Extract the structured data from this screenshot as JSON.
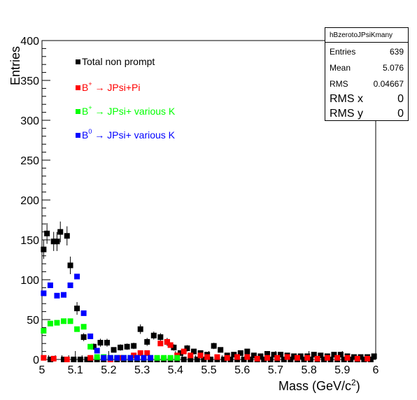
{
  "chart_data": {
    "type": "scatter",
    "title": "",
    "xlabel": "Mass (GeV/c",
    "xlabel_sup": "2",
    "xlabel_end": ")",
    "ylabel": "Entries",
    "xlim": [
      5,
      6
    ],
    "ylim": [
      0,
      400
    ],
    "x_ticks": [
      "5",
      "5.1",
      "5.2",
      "5.3",
      "5.4",
      "5.5",
      "5.6",
      "5.7",
      "5.8",
      "5.9",
      "6"
    ],
    "y_ticks": [
      "0",
      "50",
      "100",
      "150",
      "200",
      "250",
      "300",
      "350",
      "400"
    ],
    "grid": false,
    "legend_position": "top-left",
    "series": [
      {
        "name": "Total non prompt",
        "color": "#000000",
        "x": [
          5.005,
          5.015,
          5.025,
          5.035,
          5.045,
          5.055,
          5.065,
          5.075,
          5.085,
          5.095,
          5.105,
          5.115,
          5.125,
          5.135,
          5.145,
          5.155,
          5.165,
          5.175,
          5.185,
          5.195,
          5.205,
          5.215,
          5.225,
          5.235,
          5.245,
          5.255,
          5.265,
          5.275,
          5.285,
          5.295,
          5.305,
          5.315,
          5.325,
          5.335,
          5.345,
          5.355,
          5.365,
          5.375,
          5.385,
          5.395,
          5.405,
          5.415,
          5.425,
          5.435,
          5.445,
          5.455,
          5.465,
          5.475,
          5.485,
          5.495,
          5.505,
          5.515,
          5.525,
          5.535,
          5.545,
          5.555,
          5.565,
          5.575,
          5.585,
          5.595,
          5.605,
          5.615,
          5.625,
          5.635,
          5.645,
          5.655,
          5.665,
          5.675,
          5.685,
          5.695,
          5.705,
          5.715,
          5.725,
          5.735,
          5.745,
          5.755,
          5.765,
          5.775,
          5.785,
          5.795,
          5.805,
          5.815,
          5.825,
          5.835,
          5.845,
          5.855,
          5.865,
          5.875,
          5.885,
          5.895,
          5.905,
          5.915,
          5.925,
          5.935,
          5.945,
          5.955,
          5.965,
          5.975,
          5.985,
          5.995
        ],
        "y": [
          138,
          158,
          0,
          148,
          148,
          160,
          0,
          155,
          118,
          0,
          64,
          0,
          28,
          0,
          0,
          16,
          0,
          21,
          0,
          21,
          0,
          12,
          0,
          15,
          0,
          16,
          0,
          17,
          0,
          38,
          0,
          22,
          0,
          30,
          0,
          28,
          0,
          22,
          0,
          15,
          0,
          8,
          0,
          14,
          0,
          10,
          0,
          8,
          0,
          6,
          0,
          17,
          0,
          12,
          0,
          5,
          0,
          6,
          0,
          8,
          0,
          10,
          0,
          5,
          0,
          4,
          0,
          7,
          0,
          6,
          0,
          6,
          0,
          5,
          0,
          4,
          0,
          4,
          0,
          4,
          0,
          6,
          0,
          5,
          0,
          4,
          0,
          6,
          0,
          6,
          0,
          4,
          0,
          3,
          0,
          3,
          0,
          3,
          0,
          4
        ],
        "errors": [
          12,
          13,
          0,
          12,
          12,
          13,
          0,
          12,
          11,
          0,
          8,
          0,
          5,
          0,
          0,
          4,
          0,
          5,
          0,
          5,
          0,
          3,
          0,
          4,
          0,
          4,
          0,
          4,
          0,
          6,
          0,
          5,
          0,
          5,
          0,
          5,
          0,
          5,
          0,
          4,
          0,
          3,
          0,
          4,
          0,
          3,
          0,
          3,
          0,
          2,
          0,
          4,
          0,
          3,
          0,
          2,
          0,
          2,
          0,
          3,
          0,
          3,
          0,
          2,
          0,
          2,
          0,
          3,
          0,
          2,
          0,
          2,
          0,
          2,
          0,
          2,
          0,
          2,
          0,
          2,
          0,
          2,
          0,
          2,
          0,
          2,
          0,
          2,
          0,
          2,
          0,
          2,
          0,
          2,
          0,
          2,
          0,
          2,
          0,
          2
        ],
        "legend_label": "Total non prompt"
      },
      {
        "name": "B+ → JPsi+Pi",
        "color": "#ff0000",
        "x": [
          5.005,
          5.035,
          5.075,
          5.145,
          5.205,
          5.235,
          5.275,
          5.295,
          5.315,
          5.355,
          5.375,
          5.385,
          5.405,
          5.425,
          5.445,
          5.475,
          5.495,
          5.525,
          5.555,
          5.585,
          5.615,
          5.645,
          5.675,
          5.705,
          5.735,
          5.765,
          5.795,
          5.825,
          5.855,
          5.885,
          5.915,
          5.945,
          5.975
        ],
        "y": [
          2,
          1,
          0,
          2,
          0,
          2,
          5,
          8,
          8,
          20,
          22,
          18,
          5,
          10,
          5,
          5,
          3,
          3,
          2,
          3,
          3,
          1,
          2,
          2,
          3,
          2,
          2,
          1,
          2,
          2,
          2,
          1,
          1
        ],
        "legend_label": "B",
        "legend_sup": "+",
        "legend_suffix": " → JPsi+Pi"
      },
      {
        "name": "B+ → JPsi+ various K",
        "color": "#00ff00",
        "x": [
          5.005,
          5.025,
          5.045,
          5.065,
          5.085,
          5.105,
          5.125,
          5.145,
          5.165,
          5.185,
          5.205,
          5.225,
          5.245,
          5.265,
          5.285,
          5.305,
          5.325,
          5.345,
          5.365,
          5.385,
          5.405
        ],
        "y": [
          36,
          45,
          46,
          48,
          48,
          38,
          41,
          16,
          3,
          3,
          2,
          2,
          2,
          2,
          2,
          2,
          2,
          2,
          2,
          2,
          2
        ],
        "legend_label": "B",
        "legend_sup": "+",
        "legend_suffix": " → JPsi+ various K"
      },
      {
        "name": "B0 → JPsi+ various K",
        "color": "#0000ff",
        "x": [
          5.005,
          5.025,
          5.045,
          5.065,
          5.085,
          5.105,
          5.125,
          5.145,
          5.165,
          5.185,
          5.205,
          5.225,
          5.245,
          5.265,
          5.285,
          5.305,
          5.325
        ],
        "y": [
          83,
          93,
          80,
          81,
          93,
          104,
          58,
          29,
          11,
          2,
          2,
          2,
          2,
          2,
          2,
          2,
          2
        ],
        "legend_label": "B",
        "legend_sup": "0",
        "legend_suffix": " → JPsi+ various K"
      }
    ]
  },
  "stats": {
    "title": "hBzerotoJPsiKmany",
    "entries_label": "Entries",
    "entries_value": "639",
    "mean_label": "Mean",
    "mean_value": "5.076",
    "rms_label": "RMS",
    "rms_value": "0.04667",
    "rmsx_label": "RMS x",
    "rmsx_value": "0",
    "rmsy_label": "RMS y",
    "rmsy_value": "0"
  }
}
